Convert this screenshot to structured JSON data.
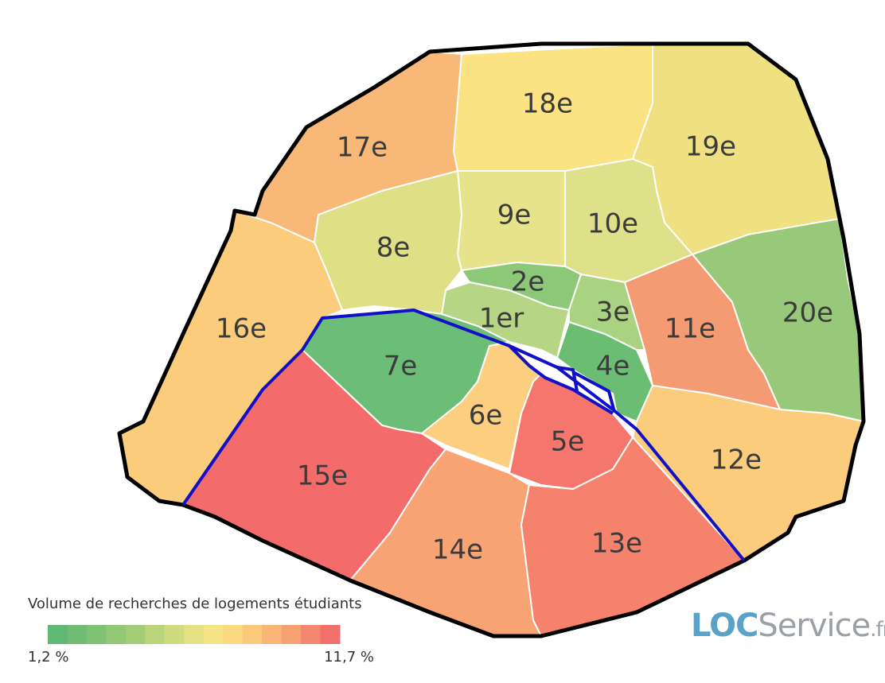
{
  "map": {
    "regions": [
      {
        "label": "17e",
        "color": "#f8b877"
      },
      {
        "label": "18e",
        "color": "#fbe282"
      },
      {
        "label": "19e",
        "color": "#efe182"
      },
      {
        "label": "20e",
        "color": "#98c97a"
      },
      {
        "label": "10e",
        "color": "#dfe08a"
      },
      {
        "label": "9e",
        "color": "#e6e38a"
      },
      {
        "label": "8e",
        "color": "#dfe085"
      },
      {
        "label": "16e",
        "color": "#fbcc7c"
      },
      {
        "label": "2e",
        "color": "#8dc878"
      },
      {
        "label": "1er",
        "color": "#b6d685"
      },
      {
        "label": "3e",
        "color": "#a9d281"
      },
      {
        "label": "11e",
        "color": "#f59b74"
      },
      {
        "label": "4e",
        "color": "#6bbd74"
      },
      {
        "label": "7e",
        "color": "#6cbd77"
      },
      {
        "label": "6e",
        "color": "#fccf80"
      },
      {
        "label": "5e",
        "color": "#f5766c"
      },
      {
        "label": "15e",
        "color": "#f36b6b"
      },
      {
        "label": "14e",
        "color": "#f7a373"
      },
      {
        "label": "13e",
        "color": "#f5826d"
      },
      {
        "label": "12e",
        "color": "#fbcc7c"
      }
    ],
    "legend": {
      "title": "Volume de recherches de logements étudiants",
      "min_label": "1,2 %",
      "max_label": "11,7 %",
      "colors": [
        "#5fb873",
        "#6fbd73",
        "#80c274",
        "#92c876",
        "#a5cd78",
        "#bad47b",
        "#cfdb7f",
        "#e3e183",
        "#f5e486",
        "#fbd982",
        "#fbc87c",
        "#f9b677",
        "#f7a173",
        "#f4876f",
        "#f2706c"
      ]
    },
    "logo": {
      "brand": "LOC",
      "name": "Service",
      "tld": ".fr"
    }
  }
}
